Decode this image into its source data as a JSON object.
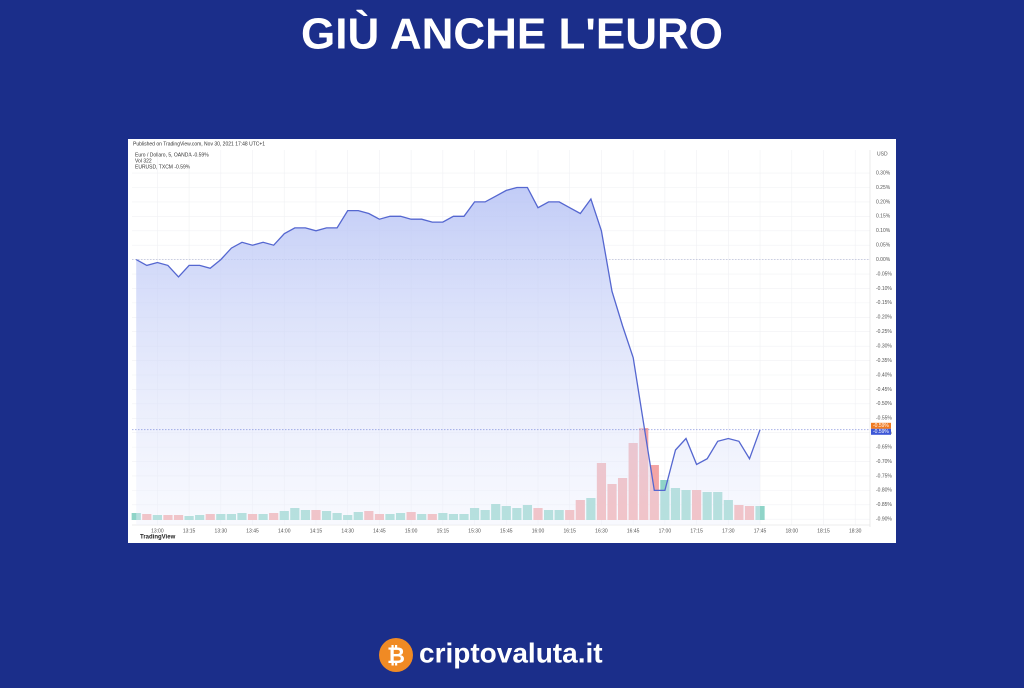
{
  "title": "GIÙ ANCHE L'EURO",
  "brand": "criptovaluta.it",
  "chart_data": {
    "type": "line",
    "published": "Published on TradingView.com, Nov 30, 2021 17:48 UTC+1",
    "legend_lines": [
      "Euro / Dollaro, 5, OANDA  -0.59%",
      "Vol  322",
      "EURUSD, TXCM  -0.59%"
    ],
    "footer": "TradingView",
    "y_unit_label": "USD",
    "last_labels": [
      "-0.59%",
      "-0.59%"
    ],
    "x": [
      770,
      775,
      780,
      785,
      790,
      795,
      800,
      805,
      810,
      815,
      820,
      825,
      830,
      835,
      840,
      845,
      850,
      855,
      860,
      865,
      870,
      875,
      880,
      885,
      890,
      895,
      900,
      905,
      910,
      915,
      920,
      925,
      930,
      935,
      940,
      945,
      950,
      955,
      960,
      965,
      970,
      975,
      980,
      985,
      990,
      995,
      1000,
      1005,
      1010,
      1015,
      1020,
      1025,
      1030,
      1035,
      1040,
      1045,
      1050,
      1055,
      1060,
      1065
    ],
    "series": [
      {
        "name": "Euro / Dollaro",
        "color": "#5567d0",
        "values": [
          0.0,
          -0.02,
          -0.01,
          -0.02,
          -0.06,
          -0.02,
          -0.02,
          -0.03,
          0.0,
          0.04,
          0.06,
          0.05,
          0.06,
          0.05,
          0.09,
          0.11,
          0.11,
          0.1,
          0.11,
          0.11,
          0.17,
          0.17,
          0.16,
          0.14,
          0.15,
          0.15,
          0.14,
          0.14,
          0.13,
          0.13,
          0.15,
          0.15,
          0.2,
          0.2,
          0.22,
          0.24,
          0.25,
          0.25,
          0.18,
          0.2,
          0.2,
          0.18,
          0.16,
          0.21,
          0.1,
          -0.11,
          -0.23,
          -0.34,
          -0.57,
          -0.8,
          -0.8,
          -0.66,
          -0.62,
          -0.71,
          -0.69,
          -0.63,
          -0.62,
          -0.63,
          -0.69,
          -0.59
        ]
      }
    ],
    "volume": [
      7,
      6,
      5,
      5,
      5,
      4,
      5,
      6,
      6,
      6,
      7,
      6,
      6,
      7,
      9,
      12,
      10,
      10,
      9,
      7,
      5,
      8,
      9,
      6,
      6,
      7,
      8,
      6,
      6,
      7,
      6,
      6,
      12,
      10,
      16,
      14,
      12,
      15,
      12,
      10,
      10,
      10,
      20,
      22,
      57,
      36,
      42,
      77,
      92,
      55,
      40,
      32,
      30,
      30,
      28,
      28,
      20,
      15,
      14,
      14
    ],
    "up_color": "#8fd4c8",
    "down_color": "#f3a5a5",
    "xlim": [
      768,
      1117
    ],
    "xticks": [
      {
        "value": 780,
        "label": "13:00"
      },
      {
        "value": 795,
        "label": "13:15"
      },
      {
        "value": 810,
        "label": "13:30"
      },
      {
        "value": 825,
        "label": "13:45"
      },
      {
        "value": 840,
        "label": "14:00"
      },
      {
        "value": 855,
        "label": "14:15"
      },
      {
        "value": 870,
        "label": "14:30"
      },
      {
        "value": 885,
        "label": "14:45"
      },
      {
        "value": 900,
        "label": "15:00"
      },
      {
        "value": 915,
        "label": "15:15"
      },
      {
        "value": 930,
        "label": "15:30"
      },
      {
        "value": 945,
        "label": "15:45"
      },
      {
        "value": 960,
        "label": "16:00"
      },
      {
        "value": 975,
        "label": "16:15"
      },
      {
        "value": 990,
        "label": "16:30"
      },
      {
        "value": 1005,
        "label": "16:45"
      },
      {
        "value": 1020,
        "label": "17:00"
      },
      {
        "value": 1035,
        "label": "17:15"
      },
      {
        "value": 1050,
        "label": "17:30"
      },
      {
        "value": 1065,
        "label": "17:45"
      },
      {
        "value": 1080,
        "label": "18:00"
      },
      {
        "value": 1095,
        "label": "18:15"
      },
      {
        "value": 1110,
        "label": "18:30"
      }
    ],
    "ylim": [
      -0.92,
      0.38
    ],
    "yticks": [
      {
        "value": 0.3,
        "label": "0.30%"
      },
      {
        "value": 0.25,
        "label": "0.25%"
      },
      {
        "value": 0.2,
        "label": "0.20%"
      },
      {
        "value": 0.15,
        "label": "0.15%"
      },
      {
        "value": 0.1,
        "label": "0.10%"
      },
      {
        "value": 0.05,
        "label": "0.05%"
      },
      {
        "value": 0,
        "label": "0.00%"
      },
      {
        "value": -0.05,
        "label": "-0.05%"
      },
      {
        "value": -0.1,
        "label": "-0.10%"
      },
      {
        "value": -0.15,
        "label": "-0.15%"
      },
      {
        "value": -0.2,
        "label": "-0.20%"
      },
      {
        "value": -0.25,
        "label": "-0.25%"
      },
      {
        "value": -0.3,
        "label": "-0.30%"
      },
      {
        "value": -0.35,
        "label": "-0.35%"
      },
      {
        "value": -0.4,
        "label": "-0.40%"
      },
      {
        "value": -0.45,
        "label": "-0.45%"
      },
      {
        "value": -0.5,
        "label": "-0.50%"
      },
      {
        "value": -0.55,
        "label": "-0.55%"
      },
      {
        "value": -0.6,
        "label": "-0.60%"
      },
      {
        "value": -0.65,
        "label": "-0.65%"
      },
      {
        "value": -0.7,
        "label": "-0.70%"
      },
      {
        "value": -0.75,
        "label": "-0.75%"
      },
      {
        "value": -0.8,
        "label": "-0.80%"
      },
      {
        "value": -0.85,
        "label": "-0.85%"
      },
      {
        "value": -0.9,
        "label": "-0.90%"
      }
    ],
    "grid": true
  }
}
